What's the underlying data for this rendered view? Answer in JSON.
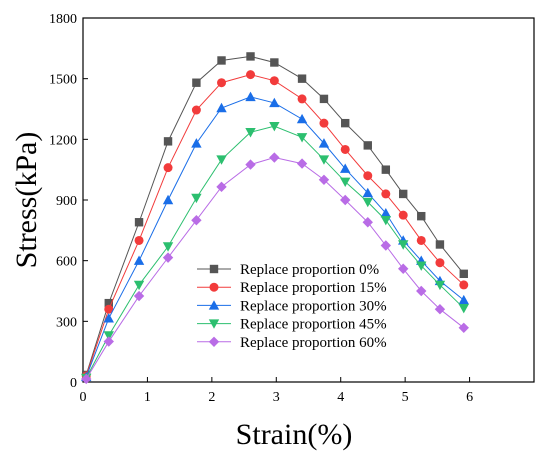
{
  "chart_data": {
    "type": "line",
    "title": "",
    "xlabel": "Strain(%)",
    "ylabel": "Stress(kPa)",
    "xlim": [
      0,
      7
    ],
    "ylim": [
      0,
      1800
    ],
    "xticks": [
      0,
      1,
      2,
      3,
      4,
      5,
      6
    ],
    "yticks": [
      0,
      300,
      600,
      900,
      1200,
      1500,
      1800
    ],
    "grid": false,
    "legend_position": "middle-right",
    "x": [
      0.05,
      0.4,
      0.87,
      1.32,
      1.76,
      2.15,
      2.6,
      2.97,
      3.4,
      3.74,
      4.07,
      4.42,
      4.7,
      4.97,
      5.25,
      5.54,
      5.91
    ],
    "series": [
      {
        "name": "Replace proportion 0%",
        "marker": "square",
        "color": "#555555",
        "values": [
          35,
          390,
          790,
          1190,
          1480,
          1590,
          1610,
          1580,
          1500,
          1400,
          1280,
          1170,
          1050,
          930,
          820,
          680,
          535
        ]
      },
      {
        "name": "Replace proportion 15%",
        "marker": "circle",
        "color": "#f23b3b",
        "values": [
          30,
          360,
          700,
          1060,
          1345,
          1480,
          1520,
          1490,
          1400,
          1280,
          1150,
          1020,
          930,
          825,
          700,
          590,
          480
        ]
      },
      {
        "name": "Replace proportion 30%",
        "marker": "triangle-up",
        "color": "#1a6ee8",
        "values": [
          25,
          315,
          600,
          900,
          1180,
          1355,
          1410,
          1380,
          1300,
          1180,
          1055,
          935,
          835,
          700,
          600,
          500,
          405
        ]
      },
      {
        "name": "Replace proportion 45%",
        "marker": "triangle-down",
        "color": "#2cbf6f",
        "values": [
          20,
          230,
          480,
          670,
          910,
          1100,
          1235,
          1265,
          1210,
          1100,
          990,
          890,
          800,
          680,
          575,
          480,
          365
        ]
      },
      {
        "name": "Replace proportion 60%",
        "marker": "diamond",
        "color": "#b96ce6",
        "values": [
          15,
          200,
          425,
          615,
          800,
          965,
          1075,
          1110,
          1080,
          1000,
          900,
          790,
          675,
          560,
          450,
          360,
          268
        ]
      }
    ]
  }
}
